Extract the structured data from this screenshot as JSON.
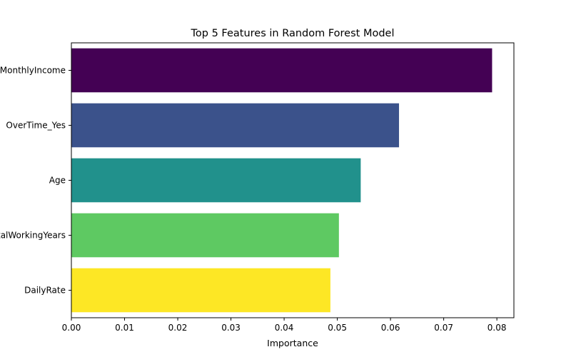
{
  "chart_data": {
    "type": "bar",
    "orientation": "horizontal",
    "title": "Top 5 Features in Random Forest Model",
    "xlabel": "Importance",
    "ylabel": "",
    "categories": [
      "MonthlyIncome",
      "OverTime_Yes",
      "Age",
      "TotalWorkingYears",
      "DailyRate"
    ],
    "values": [
      0.0791,
      0.0616,
      0.0544,
      0.0503,
      0.0487
    ],
    "colors": [
      "#440154",
      "#3b528b",
      "#21918c",
      "#5ec962",
      "#fde725"
    ],
    "xlim": [
      0,
      0.0832
    ],
    "xticks": [
      0.0,
      0.01,
      0.02,
      0.03,
      0.04,
      0.05,
      0.06,
      0.07,
      0.08
    ],
    "xtick_labels": [
      "0.00",
      "0.01",
      "0.02",
      "0.03",
      "0.04",
      "0.05",
      "0.06",
      "0.07",
      "0.08"
    ],
    "grid": false,
    "legend": "none"
  }
}
